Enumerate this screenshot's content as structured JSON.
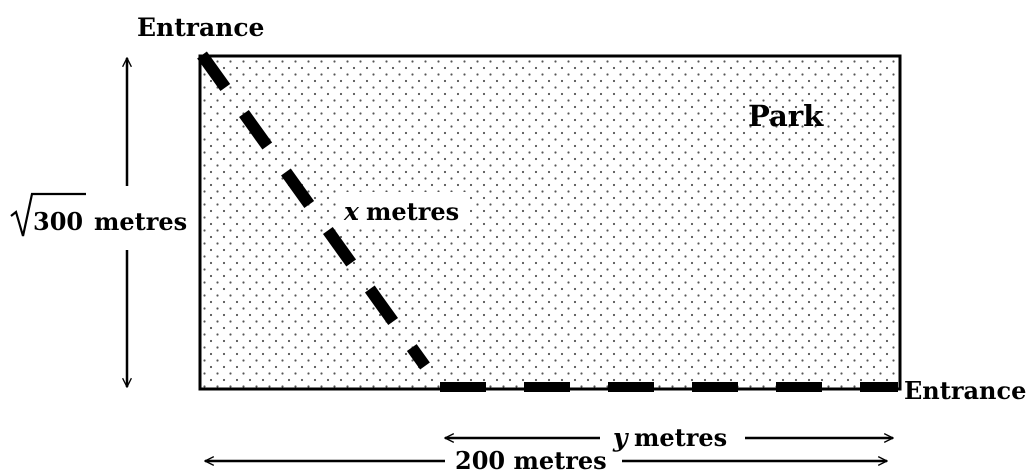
{
  "diagram": {
    "entrance_top_label": "Entrance",
    "entrance_right_label": "Entrance",
    "park_label": "Park",
    "height_label": {
      "radicand": "300",
      "unit": "metres"
    },
    "diagonal_label": {
      "variable": "x",
      "unit": "metres"
    },
    "bottom_path_label": {
      "variable": "y",
      "unit": "metres"
    },
    "width_label": "200 metres"
  }
}
